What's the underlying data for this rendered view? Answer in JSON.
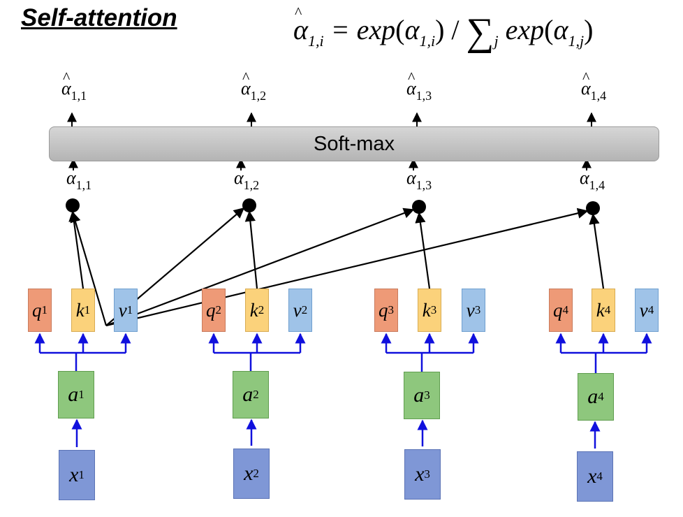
{
  "title": "Self-attention",
  "formula": {
    "lhs_symbol": "α",
    "lhs_sub": "1,i",
    "equals": "=",
    "exp1": "exp",
    "arg1_symbol": "α",
    "arg1_sub": "1,i",
    "slash": "/",
    "sum_symbol": "∑",
    "sum_sub": "j",
    "exp2": "exp",
    "arg2_symbol": "α",
    "arg2_sub": "1,j"
  },
  "softmax_label": "Soft-max",
  "columns": [
    {
      "q": "q",
      "q_sup": "1",
      "k": "k",
      "k_sup": "1",
      "v": "v",
      "v_sup": "1",
      "a": "a",
      "a_sup": "1",
      "x": "x",
      "x_sup": "1",
      "score_symbol": "α",
      "score_sub": "1,1",
      "out_symbol": "α",
      "out_sub": "1,1"
    },
    {
      "q": "q",
      "q_sup": "2",
      "k": "k",
      "k_sup": "2",
      "v": "v",
      "v_sup": "2",
      "a": "a",
      "a_sup": "2",
      "x": "x",
      "x_sup": "2",
      "score_symbol": "α",
      "score_sub": "1,2",
      "out_symbol": "α",
      "out_sub": "1,2"
    },
    {
      "q": "q",
      "q_sup": "3",
      "k": "k",
      "k_sup": "3",
      "v": "v",
      "v_sup": "3",
      "a": "a",
      "a_sup": "3",
      "x": "x",
      "x_sup": "3",
      "score_symbol": "α",
      "score_sub": "1,3",
      "out_symbol": "α",
      "out_sub": "1,3"
    },
    {
      "q": "q",
      "q_sup": "4",
      "k": "k",
      "k_sup": "4",
      "v": "v",
      "v_sup": "4",
      "a": "a",
      "a_sup": "4",
      "x": "x",
      "x_sup": "4",
      "score_symbol": "α",
      "score_sub": "1,4",
      "out_symbol": "α",
      "out_sub": "1,4"
    }
  ],
  "colors": {
    "query": "#ee9a77",
    "key": "#fbd27b",
    "value": "#9fc3e8",
    "embedding": "#8ec77d",
    "input": "#7f97d6",
    "blue_arrow": "#1010dd",
    "black_arrow": "#000000"
  }
}
